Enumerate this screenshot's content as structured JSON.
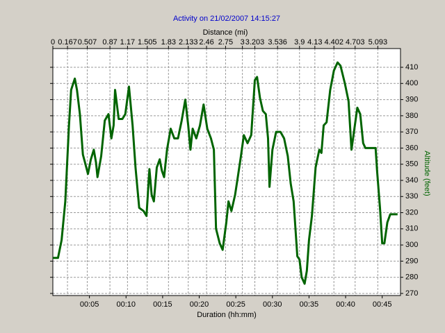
{
  "chart_data": {
    "type": "line",
    "title": "Activity on 21/02/2007 14:15:27",
    "x2_label": "Distance (mi)",
    "xlabel": "Duration (hh:mm)",
    "ylabel": "Altitude (feet)",
    "xlim": [
      0,
      47.5
    ],
    "xticks": [
      {
        "value": 5,
        "label": "00:05"
      },
      {
        "value": 10,
        "label": "00:10"
      },
      {
        "value": 15,
        "label": "00:15"
      },
      {
        "value": 20,
        "label": "00:20"
      },
      {
        "value": 25,
        "label": "00:25"
      },
      {
        "value": 30,
        "label": "00:30"
      },
      {
        "value": 35,
        "label": "00:35"
      },
      {
        "value": 40,
        "label": "00:40"
      },
      {
        "value": 45,
        "label": "00:45"
      }
    ],
    "distance_ticks": [
      0,
      0.167,
      0.507,
      0.87,
      1.17,
      1.505,
      1.83,
      2.133,
      2.46,
      2.75,
      3,
      3.203,
      3.536,
      3.9,
      4.13,
      4.402,
      4.703,
      5.093
    ],
    "distance_tick_durations": [
      0,
      2.0,
      4.7,
      7.8,
      10.2,
      12.9,
      15.8,
      18.5,
      21.0,
      23.6,
      25.9,
      27.6,
      30.7,
      33.7,
      35.8,
      38.4,
      41.3,
      44.4
    ],
    "ylim": [
      268.7,
      421.6
    ],
    "yticks": [
      270,
      280,
      290,
      300,
      310,
      320,
      330,
      340,
      350,
      360,
      370,
      380,
      390,
      400,
      410
    ],
    "grid": true,
    "x": [
      0,
      0.7,
      1.2,
      1.7,
      2.2,
      2.5,
      3.0,
      3.3,
      3.7,
      4.1,
      4.4,
      4.8,
      5.2,
      5.6,
      5.9,
      6.1,
      6.6,
      7.1,
      7.6,
      8.0,
      8.3,
      8.5,
      9.0,
      9.5,
      9.9,
      10.4,
      10.9,
      11.3,
      11.8,
      12.4,
      12.8,
      13.2,
      13.5,
      13.8,
      14.2,
      14.6,
      14.9,
      15.2,
      15.6,
      16.1,
      16.6,
      17.1,
      17.6,
      18.1,
      18.5,
      18.8,
      19.1,
      19.6,
      20.1,
      20.6,
      21.1,
      21.6,
      22.0,
      22.3,
      22.8,
      23.2,
      23.7,
      24.0,
      24.4,
      24.9,
      25.2,
      25.7,
      26.1,
      26.6,
      27.1,
      27.6,
      27.9,
      28.3,
      28.7,
      29.1,
      29.4,
      29.6,
      30.0,
      30.5,
      31.1,
      31.6,
      32.1,
      32.5,
      32.9,
      33.4,
      33.7,
      34.0,
      34.4,
      34.7,
      35.0,
      35.4,
      35.9,
      36.4,
      36.7,
      37.0,
      37.4,
      37.9,
      38.4,
      38.9,
      39.3,
      39.9,
      40.4,
      40.8,
      41.2,
      41.6,
      42.0,
      42.4,
      42.7,
      43.3,
      44.1,
      44.3,
      44.7,
      45.0,
      45.3,
      45.7,
      46.1,
      46.7,
      47.1
    ],
    "series": [
      {
        "name": "Altitude",
        "color": "#006400",
        "values": [
          292,
          292,
          303,
          327,
          374,
          396,
          403,
          396,
          381,
          356,
          351,
          344,
          353,
          359,
          351,
          342,
          355,
          377,
          381,
          366,
          374,
          396,
          378,
          378,
          381,
          398,
          374,
          348,
          323,
          321,
          318,
          347,
          331,
          327,
          348,
          353,
          346,
          342,
          359,
          372,
          366,
          366,
          377,
          390,
          374,
          359,
          372,
          366,
          374,
          387,
          372,
          366,
          359,
          310,
          301,
          297,
          314,
          327,
          321,
          331,
          340,
          355,
          368,
          363,
          368,
          402,
          404,
          391,
          383,
          381,
          366,
          336,
          359,
          370,
          370,
          366,
          355,
          338,
          327,
          293,
          291,
          280,
          276,
          284,
          303,
          318,
          348,
          359,
          357,
          374,
          376,
          396,
          408,
          413,
          411,
          400,
          389,
          359,
          372,
          385,
          381,
          363,
          360,
          360,
          360,
          346,
          323,
          301,
          301,
          314,
          319,
          319,
          319
        ]
      }
    ]
  }
}
